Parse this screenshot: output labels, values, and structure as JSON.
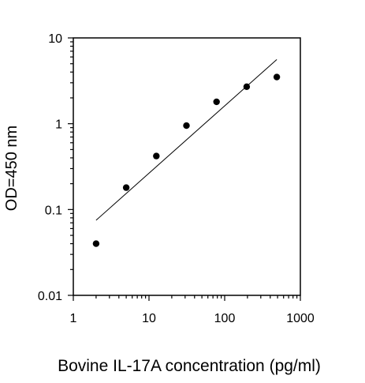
{
  "chart_data": {
    "type": "scatter",
    "x_scale": "log",
    "y_scale": "log",
    "xlabel": "Bovine IL-17A concentration (pg/ml)",
    "ylabel": "OD=450 nm",
    "xlim": [
      1,
      1000
    ],
    "ylim": [
      0.01,
      10
    ],
    "x_ticks": [
      {
        "value": 1,
        "label": "1"
      },
      {
        "value": 10,
        "label": "10"
      },
      {
        "value": 100,
        "label": "100"
      },
      {
        "value": 1000,
        "label": "1000"
      }
    ],
    "y_ticks": [
      {
        "value": 0.01,
        "label": "0.01"
      },
      {
        "value": 0.1,
        "label": "0.1"
      },
      {
        "value": 1,
        "label": "1"
      },
      {
        "value": 10,
        "label": "10"
      }
    ],
    "grid": false,
    "legend": "none",
    "series": [
      {
        "points": [
          {
            "x": 2,
            "y": 0.04
          },
          {
            "x": 5,
            "y": 0.18
          },
          {
            "x": 12.5,
            "y": 0.42
          },
          {
            "x": 31.25,
            "y": 0.95
          },
          {
            "x": 78.1,
            "y": 1.8
          },
          {
            "x": 195.3,
            "y": 2.7
          },
          {
            "x": 488.3,
            "y": 3.5
          }
        ],
        "marker_color": "#000000"
      }
    ],
    "fit_line": {
      "x_range": [
        2,
        488.3
      ],
      "y_range": [
        0.075,
        5.6
      ],
      "color": "#000000"
    }
  }
}
